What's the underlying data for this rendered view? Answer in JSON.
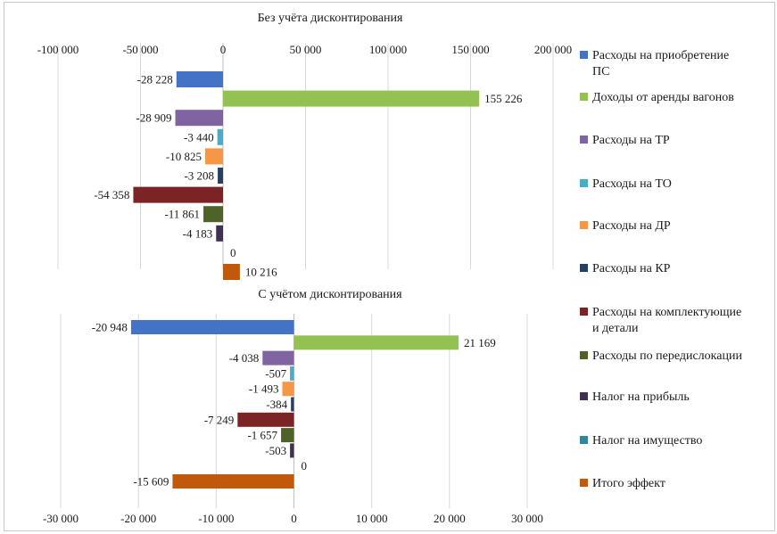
{
  "series": [
    {
      "name": "Расходы на приобретение ПС",
      "color": "#4472c4"
    },
    {
      "name": "Доходы от аренды вагонов",
      "color": "#93c152"
    },
    {
      "name": "Расходы на ТР",
      "color": "#8064a2"
    },
    {
      "name": "Расходы на ТО",
      "color": "#4bacc6"
    },
    {
      "name": "Расходы на ДР",
      "color": "#f79646"
    },
    {
      "name": "Расходы на КР",
      "color": "#254061"
    },
    {
      "name": "Расходы на комплектующие и детали",
      "color": "#7b2325"
    },
    {
      "name": "Расходы по передислокации",
      "color": "#4f6228"
    },
    {
      "name": "Налог на прибыль",
      "color": "#3f3151"
    },
    {
      "name": "Налог на имущество",
      "color": "#31859c"
    },
    {
      "name": "Итого эффект",
      "color": "#c0590c"
    }
  ],
  "legend": {
    "items": [
      {
        "line1": "Расходы на приобретение",
        "line2": "ПС"
      },
      {
        "line1": "Доходы от аренды вагонов",
        "line2": ""
      },
      {
        "line1": "Расходы на ТР",
        "line2": ""
      },
      {
        "line1": "Расходы на ТО",
        "line2": ""
      },
      {
        "line1": "Расходы на ДР",
        "line2": ""
      },
      {
        "line1": "Расходы на КР",
        "line2": ""
      },
      {
        "line1": "Расходы на комплектующие",
        "line2": "и детали"
      },
      {
        "line1": "Расходы по передислокации",
        "line2": ""
      },
      {
        "line1": "Налог на прибыль",
        "line2": ""
      },
      {
        "line1": "Налог на имущество",
        "line2": ""
      },
      {
        "line1": "Итого эффект",
        "line2": ""
      }
    ]
  },
  "chart_data": [
    {
      "type": "bar",
      "orientation": "horizontal",
      "title": "Без учёта дисконтирования",
      "xlim": [
        -100000,
        200000
      ],
      "ticks": [
        -100000,
        -50000,
        0,
        50000,
        100000,
        150000,
        200000
      ],
      "tick_labels": [
        "-100 000",
        "-50 000",
        "0",
        "50 000",
        "100 000",
        "150 000",
        "200 000"
      ],
      "axis_position": "top",
      "values": [
        -28228,
        155226,
        -28909,
        -3440,
        -10825,
        -3208,
        -54358,
        -11861,
        -4183,
        0,
        10216
      ],
      "labels": [
        "-28 228",
        "155 226",
        "-28 909",
        "-3 440",
        "-10 825",
        "-3 208",
        "-54 358",
        "-11 861",
        "-4 183",
        "0",
        "10 216"
      ]
    },
    {
      "type": "bar",
      "orientation": "horizontal",
      "title": "С учётом дисконтирования",
      "xlim": [
        -30000,
        30000
      ],
      "ticks": [
        -30000,
        -20000,
        -10000,
        0,
        10000,
        20000,
        30000
      ],
      "tick_labels": [
        "-30 000",
        "-20 000",
        "-10 000",
        "0",
        "10 000",
        "20 000",
        "30 000"
      ],
      "axis_position": "bottom",
      "values": [
        -20948,
        21169,
        -4038,
        -507,
        -1493,
        -384,
        -7249,
        -1657,
        -503,
        0,
        -15609
      ],
      "labels": [
        "-20 948",
        "21 169",
        "-4 038",
        "-507",
        "-1 493",
        "-384",
        "-7 249",
        "-1 657",
        "-503",
        "0",
        "-15 609"
      ]
    }
  ]
}
